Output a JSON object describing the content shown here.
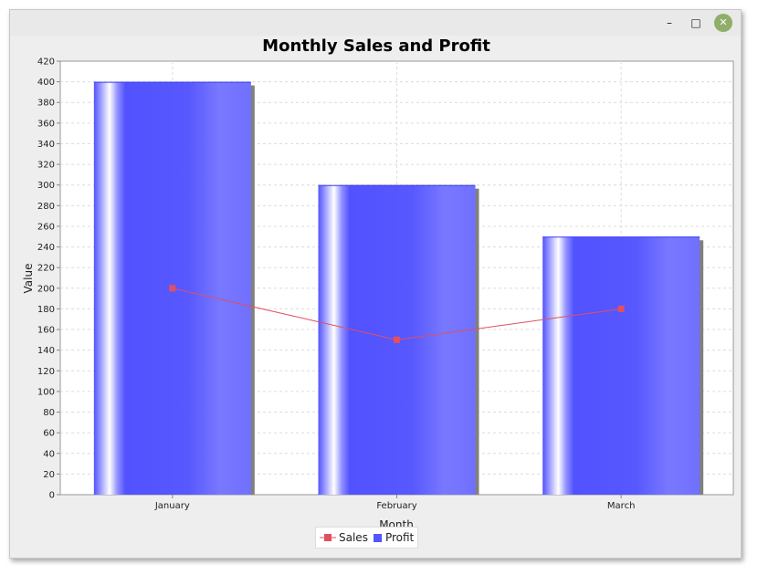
{
  "window": {
    "minimize_label": "–",
    "maximize_label": "□",
    "close_label": "✕",
    "close_color": "#8fae6a"
  },
  "chart_data": {
    "type": "bar",
    "title": "Monthly Sales and Profit",
    "xlabel": "Month",
    "ylabel": "Value",
    "categories": [
      "January",
      "February",
      "March"
    ],
    "ylim": [
      0,
      420
    ],
    "ytick_step": 20,
    "grid": true,
    "legend_position": "bottom-center",
    "series": [
      {
        "name": "Profit",
        "kind": "bar",
        "values": [
          400,
          300,
          250
        ],
        "color": "#5555ff"
      },
      {
        "name": "Sales",
        "kind": "line",
        "values": [
          200,
          150,
          180
        ],
        "color": "#e05060"
      }
    ]
  }
}
